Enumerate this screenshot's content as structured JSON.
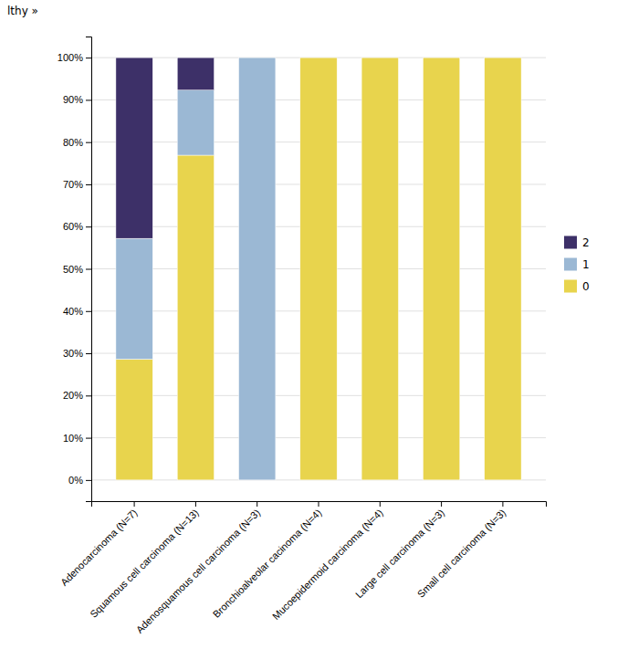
{
  "chart_data": {
    "type": "bar",
    "stacked": true,
    "annotations": [
      "lthy »"
    ],
    "categories": [
      "Adenocarcinoma (N=7)",
      "Squamous cell carcinoma (N=13)",
      "Adenosquamous cell carcinoma (N=3)",
      "Bronchioalveolar cacinoma (N=4)",
      "Mucoepidermoid carcinoma (N=4)",
      "Large cell carcinoma (N=3)",
      "Small cell carcinoma (N=3)"
    ],
    "series": [
      {
        "name": "0",
        "color": "#E8D44D",
        "values": [
          28.6,
          76.9,
          0.0,
          100.0,
          100.0,
          100.0,
          100.0
        ]
      },
      {
        "name": "1",
        "color": "#9BB8D4",
        "values": [
          28.6,
          15.4,
          100.0,
          0.0,
          0.0,
          0.0,
          0.0
        ]
      },
      {
        "name": "2",
        "color": "#3D3068",
        "values": [
          42.8,
          7.7,
          0.0,
          0.0,
          0.0,
          0.0,
          0.0
        ]
      }
    ],
    "ylim": [
      -5,
      105
    ],
    "yticks": [
      {
        "value": 0,
        "label": "0%"
      },
      {
        "value": 10,
        "label": "10%"
      },
      {
        "value": 20,
        "label": "20%"
      },
      {
        "value": 30,
        "label": "30%"
      },
      {
        "value": 40,
        "label": "40%"
      },
      {
        "value": 50,
        "label": "50%"
      },
      {
        "value": 60,
        "label": "60%"
      },
      {
        "value": 70,
        "label": "70%"
      },
      {
        "value": 80,
        "label": "80%"
      },
      {
        "value": 90,
        "label": "90%"
      },
      {
        "value": 100,
        "label": "100%"
      }
    ],
    "grid": true,
    "legend": "right"
  }
}
